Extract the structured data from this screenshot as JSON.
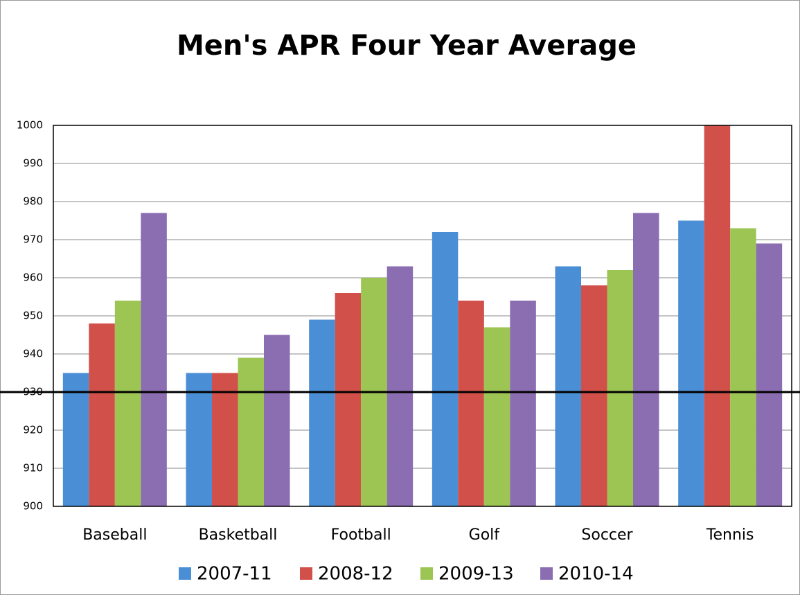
{
  "chart_data": {
    "type": "bar",
    "title": "Men's APR Four Year Average",
    "categories": [
      "Baseball",
      "Basketball",
      "Football",
      "Golf",
      "Soccer",
      "Tennis"
    ],
    "series": [
      {
        "name": "2007-11",
        "color": "#4a8fd6",
        "values": [
          935,
          935,
          949,
          972,
          963,
          975
        ]
      },
      {
        "name": "2008-12",
        "color": "#d2504a",
        "values": [
          948,
          935,
          956,
          954,
          958,
          1000
        ]
      },
      {
        "name": "2009-13",
        "color": "#9dc554",
        "values": [
          954,
          939,
          960,
          947,
          962,
          973
        ]
      },
      {
        "name": "2010-14",
        "color": "#8b6db2",
        "values": [
          977,
          945,
          963,
          954,
          977,
          969
        ]
      }
    ],
    "ylim": [
      900,
      1000
    ],
    "yticks": [
      900,
      910,
      920,
      930,
      940,
      950,
      960,
      970,
      980,
      990,
      1000
    ],
    "grid": true,
    "reference_line": 930,
    "legend": "bottom"
  }
}
